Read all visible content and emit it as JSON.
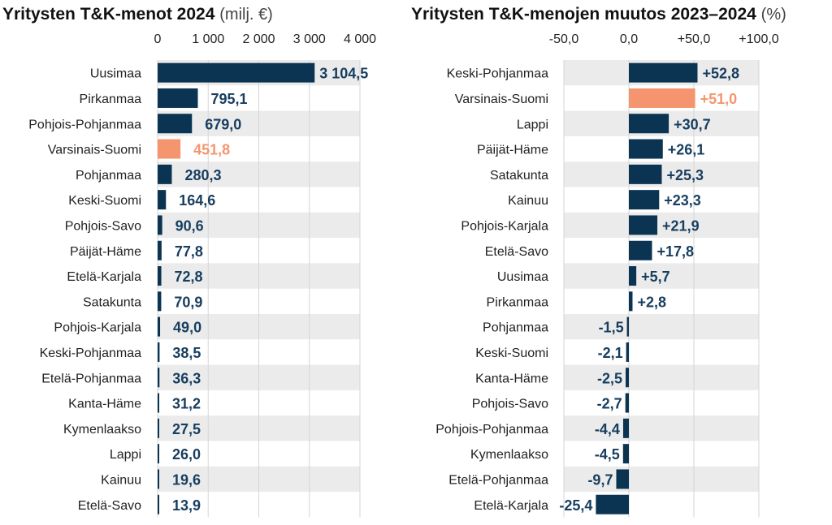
{
  "chart_data": [
    {
      "type": "bar",
      "orientation": "horizontal",
      "title": "Yritysten T&K-menot 2024",
      "unit": "(milj. €)",
      "xlim": [
        0,
        4000
      ],
      "ticks": [
        0,
        1000,
        2000,
        3000,
        4000
      ],
      "tick_labels": [
        "0",
        "1 000",
        "2 000",
        "3 000",
        "4 000"
      ],
      "grid": true,
      "categories": [
        "Uusimaa",
        "Pirkanmaa",
        "Pohjois-Pohjanmaa",
        "Varsinais-Suomi",
        "Pohjanmaa",
        "Keski-Suomi",
        "Pohjois-Savo",
        "Päijät-Häme",
        "Etelä-Karjala",
        "Satakunta",
        "Pohjois-Karjala",
        "Keski-Pohjanmaa",
        "Etelä-Pohjanmaa",
        "Kanta-Häme",
        "Kymenlaakso",
        "Lappi",
        "Kainuu",
        "Etelä-Savo"
      ],
      "values": [
        3104.5,
        795.1,
        679.0,
        451.8,
        280.3,
        164.6,
        90.6,
        77.8,
        72.8,
        70.9,
        49.0,
        38.5,
        36.3,
        31.2,
        27.5,
        26.0,
        19.6,
        13.9
      ],
      "value_labels": [
        "3 104,5",
        "795,1",
        "679,0",
        "451,8",
        "280,3",
        "164,6",
        "90,6",
        "77,8",
        "72,8",
        "70,9",
        "49,0",
        "38,5",
        "36,3",
        "31,2",
        "27,5",
        "26,0",
        "19,6",
        "13,9"
      ],
      "highlight": "Varsinais-Suomi"
    },
    {
      "type": "bar",
      "orientation": "horizontal",
      "title": "Yritysten T&K-menojen muutos 2023–2024",
      "unit": "(%)",
      "xlim": [
        -50,
        100
      ],
      "ticks": [
        -50,
        0,
        50,
        100
      ],
      "tick_labels": [
        "-50,0",
        "0,0",
        "+50,0",
        "+100,0"
      ],
      "grid": true,
      "categories": [
        "Keski-Pohjanmaa",
        "Varsinais-Suomi",
        "Lappi",
        "Päijät-Häme",
        "Satakunta",
        "Kainuu",
        "Pohjois-Karjala",
        "Etelä-Savo",
        "Uusimaa",
        "Pirkanmaa",
        "Pohjanmaa",
        "Keski-Suomi",
        "Kanta-Häme",
        "Pohjois-Savo",
        "Pohjois-Pohjanmaa",
        "Kymenlaakso",
        "Etelä-Pohjanmaa",
        "Etelä-Karjala"
      ],
      "values": [
        52.8,
        51.0,
        30.7,
        26.1,
        25.3,
        23.3,
        21.9,
        17.8,
        5.7,
        2.8,
        -1.5,
        -2.1,
        -2.5,
        -2.7,
        -4.4,
        -4.5,
        -9.7,
        -25.4
      ],
      "value_labels": [
        "+52,8",
        "+51,0",
        "+30,7",
        "+26,1",
        "+25,3",
        "+23,3",
        "+21,9",
        "+17,8",
        "+5,7",
        "+2,8",
        "-1,5",
        "-2,1",
        "-2,5",
        "-2,7",
        "-4,4",
        "-4,5",
        "-9,7",
        "-25,4"
      ],
      "highlight": "Varsinais-Suomi"
    }
  ],
  "colors": {
    "bar": "#0b3352",
    "highlight": "#f5956f",
    "label": "#173e5f",
    "row_shade": "#ebebeb",
    "grid": "#d6d6d6"
  }
}
